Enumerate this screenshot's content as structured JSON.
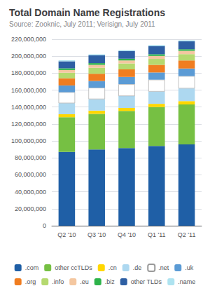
{
  "chart_data": {
    "type": "bar",
    "stacked": true,
    "title": "Total Domain Name Registrations",
    "subtitle": "Source: Zooknic, July 2011; Verisign, July 2011",
    "categories": [
      "Q2 '10",
      "Q3 '10",
      "Q4 '10",
      "Q1 '11",
      "Q2 '11"
    ],
    "series": [
      {
        "name": ".com",
        "color": "#1f5fa6",
        "values": [
          87000000,
          90000000,
          91500000,
          94000000,
          96000000
        ]
      },
      {
        "name": "other ccTLDs",
        "color": "#76c043",
        "values": [
          41000000,
          42000000,
          44000000,
          46000000,
          47000000
        ]
      },
      {
        "name": ".cn",
        "color": "#ffd700",
        "values": [
          3500000,
          3800000,
          3500000,
          3800000,
          4000000
        ]
      },
      {
        "name": ".de",
        "color": "#add8f0",
        "values": [
          13000000,
          13500000,
          14000000,
          14500000,
          15000000
        ]
      },
      {
        "name": ".net",
        "color": "#ffffff",
        "values": [
          13000000,
          13500000,
          14000000,
          14000000,
          14500000
        ]
      },
      {
        "name": ".uk",
        "color": "#5b9bd5",
        "values": [
          8000000,
          8000000,
          8500000,
          8500000,
          9000000
        ]
      },
      {
        "name": ".org",
        "color": "#f07d20",
        "values": [
          8500000,
          8500000,
          9000000,
          9000000,
          9500000
        ]
      },
      {
        "name": ".info",
        "color": "#b5d96f",
        "values": [
          6500000,
          7000000,
          7000000,
          7000000,
          7500000
        ]
      },
      {
        "name": ".eu",
        "color": "#f4c7a0",
        "values": [
          3200000,
          3500000,
          3500000,
          3500000,
          3800000
        ]
      },
      {
        "name": ".biz",
        "color": "#2db34a",
        "values": [
          2000000,
          2000000,
          2000000,
          2000000,
          2000000
        ]
      },
      {
        "name": "other TLDs",
        "color": "#2e5fa3",
        "values": [
          8300000,
          9200000,
          9000000,
          9700000,
          9200000
        ]
      },
      {
        "name": ".name",
        "color": "#aee3f0",
        "values": [
          1200000,
          1200000,
          1200000,
          1200000,
          1200000
        ]
      }
    ],
    "ylim": [
      0,
      220000000
    ],
    "yticks": [
      0,
      {
        "value": 20000000,
        "label": "20,000,000"
      },
      {
        "value": 40000000,
        "label": "40,000,000"
      },
      {
        "value": 60000000,
        "label": "60,000,000"
      },
      {
        "value": 80000000,
        "label": "80,000,000"
      },
      {
        "value": 100000000,
        "label": "100,000,000"
      },
      {
        "value": 120000000,
        "label": "120,000,000"
      },
      {
        "value": 140000000,
        "label": "140,000,000"
      },
      {
        "value": 160000000,
        "label": "160,000,000"
      },
      {
        "value": 180000000,
        "label": "180,000,000"
      },
      {
        "value": 200000000,
        "label": "200,000,000"
      },
      {
        "value": 220000000,
        "label": "220,000,000"
      }
    ],
    "grid": true,
    "legend": "bottom"
  }
}
